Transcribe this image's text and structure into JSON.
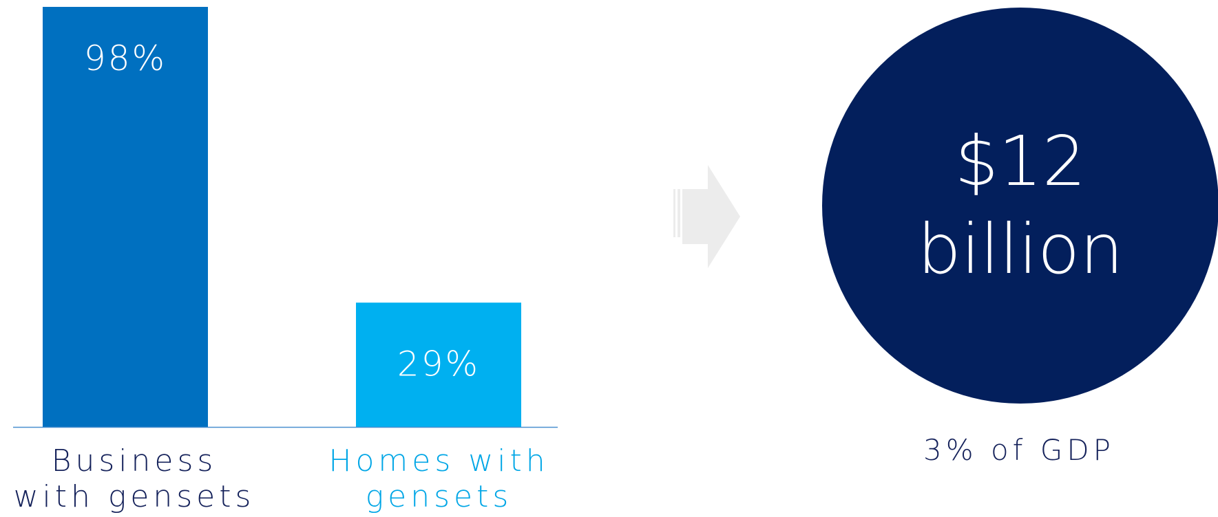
{
  "colors": {
    "bar_business": "#0070c0",
    "bar_homes": "#00b0f0",
    "label_business": "#14215a",
    "label_homes": "#00a6e6",
    "circle": "#031f5c",
    "baseline": "#4a8fd0",
    "arrow": "#ececec"
  },
  "chart_data": {
    "type": "bar",
    "categories": [
      "Business with gensets",
      "Homes with gensets"
    ],
    "values": [
      98,
      29
    ],
    "data_labels": [
      "98%",
      "29%"
    ],
    "ylim": [
      0,
      98
    ],
    "grid": false,
    "title": "",
    "xlabel": "",
    "ylabel": ""
  },
  "labels": {
    "business_lines": [
      "Business",
      "with gensets"
    ],
    "homes_lines": [
      "Homes with",
      "gensets"
    ]
  },
  "callout": {
    "line1": "$12",
    "line2": "billion",
    "note": "3% of GDP"
  },
  "icons": {
    "arrow": "right-arrow-icon"
  }
}
